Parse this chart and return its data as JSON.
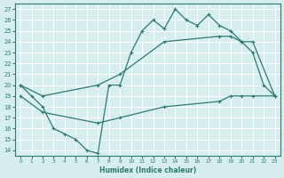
{
  "xlabel": "Humidex (Indice chaleur)",
  "bg_color": "#d6eeee",
  "grid_color": "#ffffff",
  "line_color": "#2d7a6e",
  "xlim": [
    -0.5,
    23.5
  ],
  "ylim": [
    13.5,
    27.5
  ],
  "yticks": [
    14,
    15,
    16,
    17,
    18,
    19,
    20,
    21,
    22,
    23,
    24,
    25,
    26,
    27
  ],
  "xticks": [
    0,
    1,
    2,
    3,
    4,
    5,
    6,
    7,
    8,
    9,
    10,
    11,
    12,
    13,
    14,
    15,
    16,
    17,
    18,
    19,
    20,
    21,
    22,
    23
  ],
  "line1_x": [
    0,
    1,
    2,
    3,
    4,
    5,
    6,
    7,
    8,
    9,
    10,
    11,
    12,
    13,
    14,
    15,
    16,
    17,
    18,
    19,
    20,
    21,
    22,
    23
  ],
  "line1_y": [
    20,
    19,
    18,
    16,
    15.5,
    15,
    14,
    13.7,
    20,
    20,
    23,
    25,
    26,
    25.2,
    27,
    26,
    25.5,
    26.5,
    25.5,
    25,
    24,
    23,
    20,
    19
  ],
  "line2_x": [
    0,
    2,
    7,
    9,
    13,
    18,
    19,
    20,
    21,
    23
  ],
  "line2_y": [
    20,
    19,
    20,
    21,
    24,
    24.5,
    24.5,
    24,
    24,
    19
  ],
  "line3_x": [
    0,
    2,
    7,
    9,
    13,
    18,
    19,
    20,
    21,
    23
  ],
  "line3_y": [
    19,
    17.5,
    16.5,
    17,
    18,
    18.5,
    19,
    19,
    19,
    19
  ]
}
